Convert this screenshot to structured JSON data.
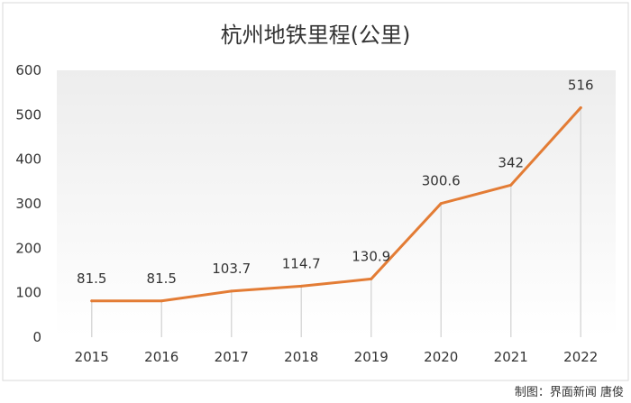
{
  "chart_data": {
    "type": "line",
    "title": "杭州地铁里程(公里)",
    "xlabel": "",
    "ylabel": "",
    "categories": [
      "2015",
      "2016",
      "2017",
      "2018",
      "2019",
      "2020",
      "2021",
      "2022"
    ],
    "series": [
      {
        "values": [
          81.5,
          81.5,
          103.7,
          114.7,
          130.9,
          300.6,
          342,
          516
        ]
      }
    ],
    "data_labels": [
      "81.5",
      "81.5",
      "103.7",
      "114.7",
      "130.9",
      "300.6",
      "342",
      "516"
    ],
    "ylim": [
      0,
      600
    ],
    "yticks": [
      0,
      100,
      200,
      300,
      400,
      500,
      600
    ],
    "grid": "vertical drop lines at each category",
    "legend": "none",
    "colors": {
      "line": "#E37C35",
      "drop_line": "#D9D9D9",
      "plot_background_top": "#EFEFEF",
      "plot_background_bottom": "#FFFFFF"
    }
  },
  "credit": "制图：界面新闻 唐俊"
}
